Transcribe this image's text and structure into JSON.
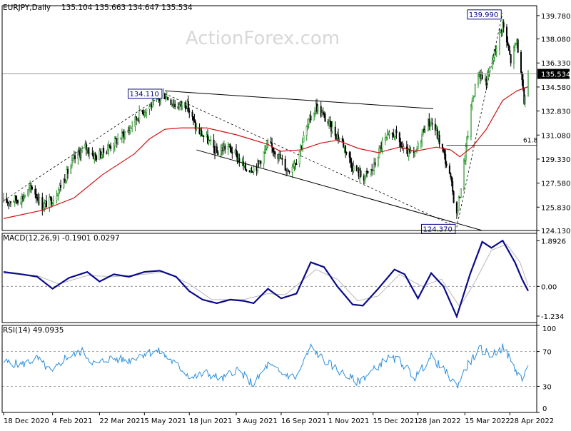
{
  "chart_data": [
    {
      "type": "candlestick",
      "symbol_title": "EURJPY,Daily",
      "ohlc_header": "135.104 135.663 134.647 135.534",
      "watermark": "ActionForex.com",
      "ylim": [
        124.13,
        140.5
      ],
      "y_ticks": [
        "139.780",
        "138.080",
        "136.330",
        "134.580",
        "132.830",
        "131.080",
        "129.330",
        "127.580",
        "125.830",
        "124.130"
      ],
      "last_price": "135.534",
      "annotations": [
        {
          "label": "139.990",
          "date": "2022-04-21",
          "value": 139.99
        },
        {
          "label": "134.110",
          "date": "2021-05-25",
          "value": 134.11
        },
        {
          "label": "124.370",
          "date": "2022-03-07",
          "value": 124.37
        },
        {
          "label": "61.8",
          "date": "2022-05-16",
          "value": 130.34
        }
      ],
      "series": [
        {
          "name": "EURJPY",
          "price_path": [
            [
              "2020-12-18",
              126.2
            ],
            [
              "2021-01-05",
              126.5
            ],
            [
              "2021-01-15",
              127.3
            ],
            [
              "2021-01-25",
              125.9
            ],
            [
              "2021-02-04",
              126.4
            ],
            [
              "2021-02-15",
              127.8
            ],
            [
              "2021-02-25",
              129.3
            ],
            [
              "2021-03-08",
              130.2
            ],
            [
              "2021-03-18",
              129.5
            ],
            [
              "2021-03-25",
              129.8
            ],
            [
              "2021-04-05",
              130.5
            ],
            [
              "2021-04-20",
              131.5
            ],
            [
              "2021-04-30",
              132.6
            ],
            [
              "2021-05-10",
              133.2
            ],
            [
              "2021-05-20",
              133.7
            ],
            [
              "2021-05-25",
              134.0
            ],
            [
              "2021-06-05",
              133.2
            ],
            [
              "2021-06-15",
              133.4
            ],
            [
              "2021-06-25",
              131.5
            ],
            [
              "2021-07-05",
              130.8
            ],
            [
              "2021-07-15",
              129.8
            ],
            [
              "2021-07-25",
              130.3
            ],
            [
              "2021-08-03",
              129.6
            ],
            [
              "2021-08-12",
              128.6
            ],
            [
              "2021-08-23",
              128.8
            ],
            [
              "2021-09-03",
              130.3
            ],
            [
              "2021-09-10",
              130.0
            ],
            [
              "2021-09-22",
              128.5
            ],
            [
              "2021-10-01",
              129.3
            ],
            [
              "2021-10-12",
              131.8
            ],
            [
              "2021-10-20",
              133.2
            ],
            [
              "2021-10-28",
              132.4
            ],
            [
              "2021-11-05",
              131.5
            ],
            [
              "2021-11-15",
              130.6
            ],
            [
              "2021-11-25",
              128.8
            ],
            [
              "2021-12-05",
              128.0
            ],
            [
              "2021-12-15",
              128.6
            ],
            [
              "2021-12-24",
              130.5
            ],
            [
              "2022-01-05",
              131.2
            ],
            [
              "2022-01-15",
              129.8
            ],
            [
              "2022-01-25",
              129.6
            ],
            [
              "2022-02-05",
              132.0
            ],
            [
              "2022-02-12",
              131.9
            ],
            [
              "2022-02-22",
              129.8
            ],
            [
              "2022-03-01",
              127.8
            ],
            [
              "2022-03-07",
              125.2
            ],
            [
              "2022-03-15",
              129.5
            ],
            [
              "2022-03-22",
              133.5
            ],
            [
              "2022-03-28",
              135.6
            ],
            [
              "2022-04-05",
              135.0
            ],
            [
              "2022-04-12",
              136.8
            ],
            [
              "2022-04-21",
              139.2
            ],
            [
              "2022-04-29",
              136.5
            ],
            [
              "2022-05-05",
              138.0
            ],
            [
              "2022-05-12",
              133.5
            ],
            [
              "2022-05-16",
              135.5
            ]
          ]
        },
        {
          "name": "MA",
          "values": [
            [
              "2020-12-18",
              125.0
            ],
            [
              "2021-01-25",
              125.6
            ],
            [
              "2021-02-25",
              126.5
            ],
            [
              "2021-03-25",
              128.2
            ],
            [
              "2021-04-25",
              129.7
            ],
            [
              "2021-05-10",
              130.8
            ],
            [
              "2021-05-25",
              131.5
            ],
            [
              "2021-06-10",
              131.6
            ],
            [
              "2021-07-05",
              131.6
            ],
            [
              "2021-08-03",
              131.1
            ],
            [
              "2021-09-03",
              130.4
            ],
            [
              "2021-09-15",
              129.9
            ],
            [
              "2021-10-05",
              130.0
            ],
            [
              "2021-10-25",
              130.5
            ],
            [
              "2021-11-10",
              130.7
            ],
            [
              "2021-12-01",
              130.1
            ],
            [
              "2021-12-20",
              129.8
            ],
            [
              "2022-01-10",
              130.2
            ],
            [
              "2022-01-25",
              129.9
            ],
            [
              "2022-02-15",
              130.2
            ],
            [
              "2022-03-01",
              130.0
            ],
            [
              "2022-03-10",
              129.5
            ],
            [
              "2022-03-22",
              130.2
            ],
            [
              "2022-04-05",
              131.5
            ],
            [
              "2022-04-21",
              133.6
            ],
            [
              "2022-05-05",
              134.3
            ],
            [
              "2022-05-16",
              134.6
            ]
          ]
        }
      ]
    },
    {
      "type": "line",
      "title": "MACD(12,26,9) -0.1901 0.0297",
      "ylim": [
        -1.5,
        2.2
      ],
      "y_ticks": [
        "1.8926",
        "0.00",
        "-1.234"
      ],
      "last_price": "0.0297",
      "series": [
        {
          "name": "MACD",
          "values": [
            [
              "2020-12-18",
              0.6
            ],
            [
              "2021-01-05",
              0.5
            ],
            [
              "2021-01-20",
              0.4
            ],
            [
              "2021-02-04",
              -0.1
            ],
            [
              "2021-02-20",
              0.35
            ],
            [
              "2021-03-10",
              0.6
            ],
            [
              "2021-03-22",
              0.2
            ],
            [
              "2021-04-05",
              0.5
            ],
            [
              "2021-04-20",
              0.4
            ],
            [
              "2021-05-05",
              0.6
            ],
            [
              "2021-05-20",
              0.65
            ],
            [
              "2021-06-05",
              0.4
            ],
            [
              "2021-06-18",
              -0.2
            ],
            [
              "2021-07-01",
              -0.55
            ],
            [
              "2021-07-15",
              -0.7
            ],
            [
              "2021-07-28",
              -0.55
            ],
            [
              "2021-08-10",
              -0.6
            ],
            [
              "2021-08-20",
              -0.7
            ],
            [
              "2021-09-03",
              -0.1
            ],
            [
              "2021-09-16",
              -0.5
            ],
            [
              "2021-10-01",
              -0.3
            ],
            [
              "2021-10-15",
              1.0
            ],
            [
              "2021-10-28",
              0.8
            ],
            [
              "2021-11-10",
              0.0
            ],
            [
              "2021-11-25",
              -0.75
            ],
            [
              "2021-12-05",
              -0.8
            ],
            [
              "2021-12-20",
              -0.1
            ],
            [
              "2022-01-05",
              0.7
            ],
            [
              "2022-01-15",
              0.5
            ],
            [
              "2022-01-28",
              -0.5
            ],
            [
              "2022-02-10",
              0.55
            ],
            [
              "2022-02-22",
              0.0
            ],
            [
              "2022-03-07",
              -1.25
            ],
            [
              "2022-03-20",
              0.5
            ],
            [
              "2022-04-01",
              1.85
            ],
            [
              "2022-04-10",
              1.6
            ],
            [
              "2022-04-21",
              1.9
            ],
            [
              "2022-05-03",
              1.0
            ],
            [
              "2022-05-10",
              0.3
            ],
            [
              "2022-05-16",
              -0.19
            ]
          ]
        },
        {
          "name": "Signal",
          "values": [
            [
              "2020-12-18",
              0.55
            ],
            [
              "2021-01-20",
              0.45
            ],
            [
              "2021-02-10",
              0.1
            ],
            [
              "2021-03-10",
              0.45
            ],
            [
              "2021-04-05",
              0.4
            ],
            [
              "2021-05-05",
              0.5
            ],
            [
              "2021-05-25",
              0.6
            ],
            [
              "2021-06-18",
              0.1
            ],
            [
              "2021-07-10",
              -0.55
            ],
            [
              "2021-08-10",
              -0.55
            ],
            [
              "2021-09-03",
              -0.3
            ],
            [
              "2021-09-20",
              -0.35
            ],
            [
              "2021-10-20",
              0.7
            ],
            [
              "2021-11-10",
              0.3
            ],
            [
              "2021-11-30",
              -0.6
            ],
            [
              "2021-12-20",
              -0.4
            ],
            [
              "2022-01-10",
              0.5
            ],
            [
              "2022-02-01",
              0.0
            ],
            [
              "2022-02-20",
              0.3
            ],
            [
              "2022-03-10",
              -0.85
            ],
            [
              "2022-03-25",
              0.2
            ],
            [
              "2022-04-10",
              1.5
            ],
            [
              "2022-04-25",
              1.75
            ],
            [
              "2022-05-08",
              1.0
            ],
            [
              "2022-05-16",
              0.03
            ]
          ]
        }
      ]
    },
    {
      "type": "line",
      "title": "RSI(14) 49.0935",
      "ylim": [
        0,
        100
      ],
      "y_ticks": [
        "100",
        "70",
        "30",
        "0"
      ],
      "series": [
        {
          "name": "RSI",
          "values": [
            [
              "2020-12-18",
              58
            ],
            [
              "2021-01-05",
              55
            ],
            [
              "2021-01-20",
              62
            ],
            [
              "2021-02-04",
              45
            ],
            [
              "2021-02-15",
              62
            ],
            [
              "2021-03-05",
              70
            ],
            [
              "2021-03-18",
              55
            ],
            [
              "2021-04-01",
              62
            ],
            [
              "2021-04-20",
              60
            ],
            [
              "2021-05-05",
              68
            ],
            [
              "2021-05-20",
              70
            ],
            [
              "2021-06-05",
              55
            ],
            [
              "2021-06-20",
              40
            ],
            [
              "2021-07-05",
              45
            ],
            [
              "2021-07-20",
              38
            ],
            [
              "2021-08-03",
              50
            ],
            [
              "2021-08-20",
              32
            ],
            [
              "2021-09-03",
              55
            ],
            [
              "2021-09-16",
              45
            ],
            [
              "2021-10-01",
              40
            ],
            [
              "2021-10-15",
              75
            ],
            [
              "2021-10-28",
              60
            ],
            [
              "2021-11-15",
              45
            ],
            [
              "2021-11-30",
              35
            ],
            [
              "2021-12-15",
              48
            ],
            [
              "2021-12-28",
              62
            ],
            [
              "2022-01-10",
              60
            ],
            [
              "2022-01-25",
              40
            ],
            [
              "2022-02-10",
              64
            ],
            [
              "2022-02-25",
              45
            ],
            [
              "2022-03-07",
              30
            ],
            [
              "2022-03-18",
              55
            ],
            [
              "2022-03-30",
              73
            ],
            [
              "2022-04-10",
              66
            ],
            [
              "2022-04-22",
              75
            ],
            [
              "2022-05-03",
              50
            ],
            [
              "2022-05-10",
              38
            ],
            [
              "2022-05-16",
              49
            ]
          ]
        }
      ]
    }
  ],
  "x_axis": {
    "x_ticks": [
      {
        "label": "18 Dec 2020",
        "date": "2020-12-18"
      },
      {
        "label": "4 Feb 2021",
        "date": "2021-02-04"
      },
      {
        "label": "22 Mar 2021",
        "date": "2021-03-22"
      },
      {
        "label": "5 May 2021",
        "date": "2021-05-05"
      },
      {
        "label": "18 Jun 2021",
        "date": "2021-06-18"
      },
      {
        "label": "3 Aug 2021",
        "date": "2021-08-03"
      },
      {
        "label": "16 Sep 2021",
        "date": "2021-09-16"
      },
      {
        "label": "1 Nov 2021",
        "date": "2021-11-01"
      },
      {
        "label": "15 Dec 2021",
        "date": "2021-12-15"
      },
      {
        "label": "28 Jan 2022",
        "date": "2022-01-28"
      },
      {
        "label": "15 Mar 2022",
        "date": "2022-03-15"
      },
      {
        "label": "28 Apr 2022",
        "date": "2022-04-28"
      }
    ]
  },
  "colors": {
    "up": "#1e8e1e",
    "down": "#000000",
    "ma": "#d01010",
    "macd": "#0a0a8a",
    "signal": "#b8b8b8",
    "rsi": "#2c8fdc",
    "label_box": "#0a0a8a",
    "grid": "#888888"
  }
}
